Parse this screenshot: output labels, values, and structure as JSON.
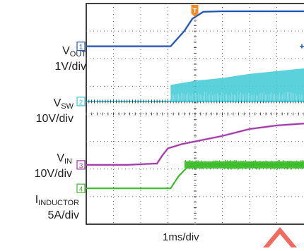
{
  "chart_data": {
    "type": "line",
    "title": "",
    "x_scale_label": "1ms/div",
    "x_divisions": 8,
    "y_divisions": 8,
    "grid": true,
    "trigger_marker": "T",
    "channels": [
      {
        "id": "1",
        "name_main": "V",
        "name_sub": "OUT",
        "scale": "1V/div",
        "color": "#1f55b3"
      },
      {
        "id": "2",
        "name_main": "V",
        "name_sub": "SW",
        "scale": "10V/div",
        "color": "#3ec9d6"
      },
      {
        "id": "3",
        "name_main": "V",
        "name_sub": "IN",
        "scale": "10V/div",
        "color": "#a03aa8"
      },
      {
        "id": "4",
        "name_main": "I",
        "name_sub": "INDUCTOR",
        "scale": "5A/div",
        "color": "#3cbc2a"
      }
    ],
    "series": [
      {
        "channel": "1",
        "x_div": [
          0,
          1.6,
          3.1,
          3.6,
          3.9,
          4.3,
          5.0,
          6.0,
          7.0,
          8.0
        ],
        "y_div": [
          6.45,
          6.45,
          6.45,
          7.0,
          7.45,
          7.7,
          7.72,
          7.72,
          7.72,
          7.72
        ]
      },
      {
        "channel": "3",
        "x_div": [
          0,
          1.5,
          2.6,
          2.8,
          3.0,
          3.5,
          4.0,
          5.0,
          6.0,
          7.0,
          8.0
        ],
        "y_div": [
          2.15,
          2.15,
          2.2,
          2.5,
          2.75,
          2.9,
          3.0,
          3.2,
          3.45,
          3.58,
          3.65
        ],
        "style": "clean"
      },
      {
        "channel": "4",
        "x_div": [
          0,
          1.5,
          3.1,
          3.4,
          3.7,
          4.2,
          5.0,
          6.0,
          7.0,
          8.0
        ],
        "y_div": [
          1.3,
          1.3,
          1.3,
          1.75,
          2.05,
          2.15,
          2.15,
          2.15,
          2.15,
          2.15
        ],
        "style": "noisy"
      },
      {
        "channel": "2",
        "baseline_y_div": 4.45,
        "switching_start_x_div": 3.1,
        "x_div": [
          3.1,
          4.0,
          5.0,
          6.0,
          7.0,
          8.0
        ],
        "y_div": [
          5.05,
          5.2,
          5.3,
          5.45,
          5.55,
          5.65
        ],
        "style": "switching"
      }
    ]
  }
}
